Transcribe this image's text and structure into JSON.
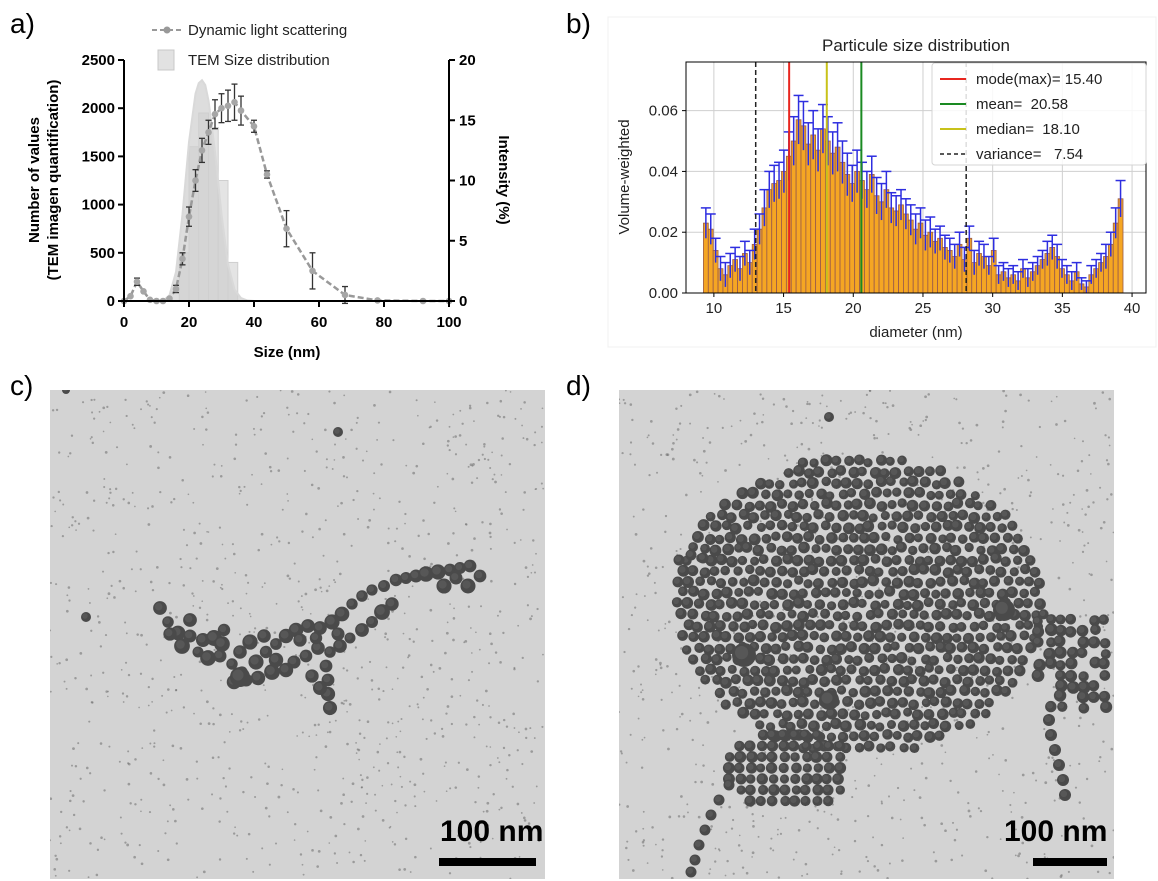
{
  "panels": {
    "a": "a)",
    "b": "b)",
    "c": "c)",
    "d": "d)"
  },
  "chart_data": [
    {
      "type": "line",
      "panel": "a",
      "xlabel": "Size (nm)",
      "ylabel_left_line1": "Number of values",
      "ylabel_left_line2": "(TEM imagen quantification)",
      "ylabel_right": "Intensity (%)",
      "xlim": [
        0,
        100
      ],
      "ylim_left": [
        0,
        2500
      ],
      "ylim_right": [
        0,
        20
      ],
      "x_ticks": [
        0,
        20,
        40,
        60,
        80,
        100
      ],
      "y_left_ticks": [
        0,
        500,
        1000,
        1500,
        2000,
        2500
      ],
      "y_right_ticks": [
        0,
        5,
        10,
        15,
        20
      ],
      "legend": [
        "Dynamic light scattering",
        "TEM Size distribution"
      ],
      "series": [
        {
          "name": "Dynamic light scattering",
          "axis": "right",
          "x": [
            0,
            2,
            4,
            6,
            8,
            10,
            12,
            14,
            16,
            18,
            20,
            22,
            24,
            26,
            28,
            30,
            32,
            34,
            36,
            40,
            44,
            50,
            58,
            68,
            78,
            92,
            100
          ],
          "y": [
            0,
            0.4,
            1.6,
            0.8,
            0.1,
            0,
            0,
            0.2,
            1,
            3.5,
            7,
            10,
            12.5,
            14,
            15.5,
            16,
            16.2,
            16.5,
            15.8,
            14.5,
            10.5,
            6,
            2.5,
            0.5,
            0.05,
            0,
            0
          ],
          "error": [
            0,
            0,
            0.3,
            0,
            0,
            0,
            0,
            0,
            0.3,
            0.5,
            0.8,
            0.9,
            1.0,
            1.0,
            1.2,
            1.2,
            1.3,
            1.5,
            1.2,
            0.5,
            0.3,
            1.5,
            1.5,
            0.7,
            0,
            0,
            0
          ]
        },
        {
          "name": "TEM Size distribution",
          "axis": "left",
          "type": "histogram",
          "bins": [
            [
              17,
              20,
              500
            ],
            [
              20,
              23,
              1600
            ],
            [
              23,
              26,
              1950
            ],
            [
              26,
              29,
              1800
            ],
            [
              29,
              32,
              1250
            ],
            [
              32,
              35,
              400
            ]
          ],
          "fit_x": [
            12,
            14,
            16,
            18,
            20,
            22,
            23,
            24,
            25,
            26,
            28,
            30,
            32,
            34,
            36,
            38,
            40
          ],
          "fit_y": [
            0,
            60,
            300,
            900,
            1650,
            2150,
            2260,
            2290,
            2240,
            2080,
            1550,
            900,
            380,
            120,
            30,
            5,
            0
          ]
        }
      ]
    },
    {
      "type": "bar",
      "panel": "b",
      "title": "Particule size distribution",
      "xlabel": "diameter (nm)",
      "ylabel": "Volume-weighted",
      "xlim": [
        8,
        41
      ],
      "ylim": [
        0,
        0.076
      ],
      "x_ticks": [
        10,
        15,
        20,
        25,
        30,
        35,
        40
      ],
      "y_ticks": [
        0.0,
        0.02,
        0.04,
        0.06
      ],
      "y_tick_labels": [
        "0.00",
        "0.02",
        "0.04",
        "0.06"
      ],
      "grid": true,
      "legend_position": "top-right",
      "bin_width": 0.5,
      "values": [
        0.023,
        0.021,
        0.014,
        0.008,
        0.006,
        0.009,
        0.011,
        0.008,
        0.013,
        0.01,
        0.016,
        0.021,
        0.028,
        0.034,
        0.036,
        0.037,
        0.04,
        0.045,
        0.05,
        0.057,
        0.055,
        0.049,
        0.052,
        0.047,
        0.054,
        0.05,
        0.046,
        0.048,
        0.043,
        0.039,
        0.036,
        0.04,
        0.037,
        0.034,
        0.039,
        0.032,
        0.03,
        0.034,
        0.028,
        0.027,
        0.029,
        0.026,
        0.024,
        0.021,
        0.023,
        0.019,
        0.02,
        0.017,
        0.018,
        0.015,
        0.014,
        0.012,
        0.016,
        0.011,
        0.018,
        0.01,
        0.013,
        0.012,
        0.009,
        0.014,
        0.006,
        0.007,
        0.005,
        0.006,
        0.004,
        0.008,
        0.005,
        0.007,
        0.009,
        0.011,
        0.013,
        0.015,
        0.012,
        0.008,
        0.006,
        0.004,
        0.007,
        0.003,
        0.002,
        0.006,
        0.008,
        0.01,
        0.012,
        0.016,
        0.023,
        0.031
      ],
      "errors": [
        0.005,
        0.005,
        0.004,
        0.004,
        0.004,
        0.004,
        0.004,
        0.004,
        0.004,
        0.004,
        0.005,
        0.005,
        0.006,
        0.006,
        0.006,
        0.006,
        0.007,
        0.008,
        0.008,
        0.008,
        0.008,
        0.007,
        0.008,
        0.007,
        0.008,
        0.008,
        0.007,
        0.008,
        0.007,
        0.007,
        0.006,
        0.007,
        0.006,
        0.006,
        0.006,
        0.006,
        0.006,
        0.006,
        0.005,
        0.005,
        0.005,
        0.005,
        0.005,
        0.005,
        0.005,
        0.005,
        0.005,
        0.004,
        0.004,
        0.004,
        0.004,
        0.004,
        0.004,
        0.004,
        0.004,
        0.004,
        0.004,
        0.004,
        0.003,
        0.004,
        0.003,
        0.003,
        0.003,
        0.003,
        0.003,
        0.003,
        0.003,
        0.003,
        0.003,
        0.003,
        0.004,
        0.004,
        0.004,
        0.003,
        0.003,
        0.003,
        0.003,
        0.002,
        0.002,
        0.003,
        0.003,
        0.003,
        0.004,
        0.004,
        0.005,
        0.006
      ],
      "vlines": [
        {
          "label": "mode(max)= 15.40",
          "x": 15.4,
          "color": "#e8261f",
          "style": "solid"
        },
        {
          "label": "mean=  20.58",
          "x": 20.58,
          "color": "#1a8a22",
          "style": "solid"
        },
        {
          "label": "median=  18.10",
          "x": 18.1,
          "color": "#c8c21a",
          "style": "solid"
        },
        {
          "label": "variance=   7.54",
          "x": 13.0,
          "x2": 28.1,
          "color": "#222222",
          "style": "dashed"
        }
      ],
      "colors": {
        "bar": "#f5a623",
        "bar_edge": "#9a5b4a",
        "error": "#2e2ee0"
      }
    }
  ],
  "images": {
    "c": {
      "scale_label": "100 nm"
    },
    "d": {
      "scale_label": "100 nm"
    }
  }
}
